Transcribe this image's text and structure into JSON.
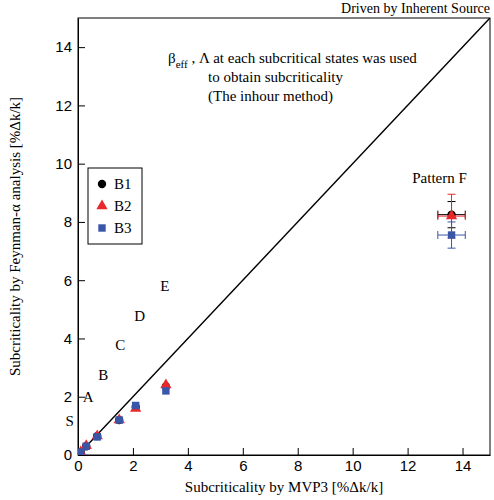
{
  "chart_data": {
    "type": "scatter",
    "title": "Driven by Inherent Source",
    "x_label": "Subcriticality by MVP3  [%Δk/k]",
    "y_label": "Subcriticality by Feynman-α analysis  [%Δk/k]",
    "annotation": {
      "symbol": "β",
      "subscript": "eff",
      "lines": [
        " , Λ at each subcritical states was used",
        "to obtain subcriticality",
        "(The inhour method)"
      ]
    },
    "point_labels": [
      "S",
      "A",
      "B",
      "C",
      "D",
      "E",
      "Pattern F"
    ],
    "x": [
      0.1,
      0.3,
      0.7,
      1.5,
      2.1,
      3.2,
      13.6
    ],
    "series": [
      {
        "name": "B1",
        "color": "#000000",
        "marker": "circle",
        "values": [
          0.1,
          0.3,
          0.65,
          1.2,
          1.65,
          2.35,
          8.25
        ],
        "y_error": [
          null,
          null,
          null,
          null,
          null,
          null,
          0.45
        ],
        "x_error": [
          null,
          null,
          null,
          null,
          null,
          null,
          0.5
        ]
      },
      {
        "name": "B2",
        "color": "#e8282b",
        "marker": "triangle",
        "values": [
          0.1,
          0.32,
          0.65,
          1.2,
          1.6,
          2.4,
          8.2
        ],
        "y_error": [
          null,
          null,
          null,
          null,
          null,
          null,
          0.75
        ],
        "x_error": [
          null,
          null,
          null,
          null,
          null,
          null,
          0.5
        ]
      },
      {
        "name": "B3",
        "color": "#3a56a8",
        "marker": "square",
        "values": [
          0.1,
          0.3,
          0.62,
          1.2,
          1.7,
          2.2,
          7.55
        ],
        "y_error": [
          null,
          null,
          null,
          null,
          null,
          null,
          0.45
        ],
        "x_error": [
          null,
          null,
          null,
          null,
          null,
          null,
          0.5
        ]
      }
    ],
    "reference_line": {
      "x": [
        0,
        15
      ],
      "y": [
        0,
        15
      ]
    },
    "xlim": [
      0,
      15
    ],
    "ylim": [
      0,
      15
    ],
    "xticks": [
      0,
      2,
      4,
      6,
      8,
      10,
      12,
      14
    ],
    "yticks": [
      0,
      2,
      4,
      6,
      8,
      10,
      12,
      14
    ],
    "legend": "upper left",
    "grid": false
  }
}
